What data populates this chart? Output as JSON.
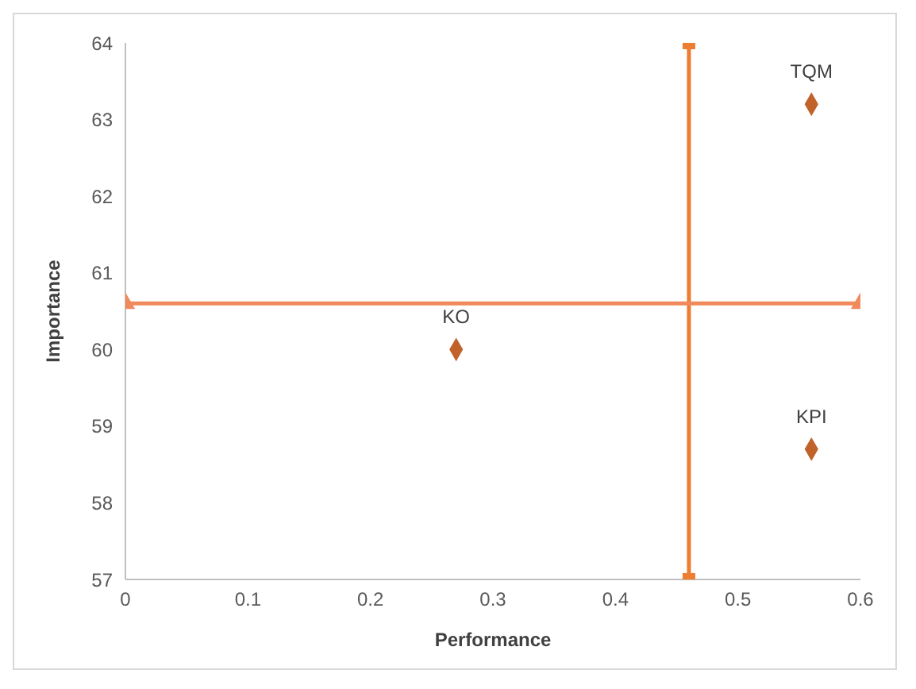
{
  "chart_data": {
    "type": "scatter",
    "xlabel": "Performance",
    "ylabel": "Importance",
    "xlim": [
      0,
      0.6
    ],
    "xticks": [
      0,
      0.1,
      0.2,
      0.3,
      0.4,
      0.5,
      0.6
    ],
    "ylim": [
      57,
      64
    ],
    "yticks": [
      57,
      58,
      59,
      60,
      61,
      62,
      63,
      64
    ],
    "grid": false,
    "legend": false,
    "series": [
      {
        "name": "KO",
        "type": "scatter",
        "marker": "diamond",
        "color": "#c0622a",
        "x": [
          0.27
        ],
        "values": [
          60.0
        ]
      },
      {
        "name": "TQM",
        "type": "scatter",
        "marker": "diamond",
        "color": "#c0622a",
        "x": [
          0.56
        ],
        "values": [
          63.2
        ]
      },
      {
        "name": "KPI",
        "type": "scatter",
        "marker": "diamond",
        "color": "#c0622a",
        "x": [
          0.56
        ],
        "values": [
          58.7
        ]
      },
      {
        "type": "line",
        "marker": "square",
        "color": "#ed7d31",
        "x": [
          0.46,
          0.46
        ],
        "values": [
          57,
          64
        ]
      },
      {
        "type": "line",
        "marker": "triangle",
        "color": "#f08a5d",
        "x": [
          0,
          0.6
        ],
        "values": [
          60.6,
          60.6
        ]
      }
    ]
  }
}
